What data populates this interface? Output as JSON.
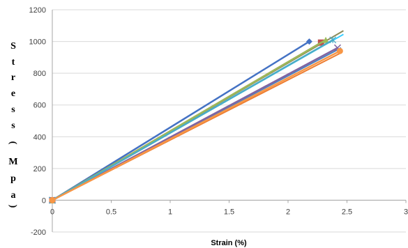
{
  "chart_data": {
    "type": "scatter",
    "title": "",
    "xlabel": "Strain (%)",
    "ylabel": "Stress (Mpa)",
    "ylabel_chars": [
      "S",
      "t",
      "r",
      "e",
      "s",
      "s",
      "(",
      "M",
      "p",
      "a",
      ")"
    ],
    "xlim": [
      0,
      3
    ],
    "ylim": [
      -200,
      1200
    ],
    "xticks": [
      "0",
      "0.5",
      "1",
      "1.5",
      "2",
      "2.5",
      "3"
    ],
    "yticks": [
      "-200",
      "0",
      "200",
      "400",
      "600",
      "800",
      "1000",
      "1200"
    ],
    "grid": "horizontal",
    "legend": "none",
    "series": [
      {
        "color": "#4472C4",
        "marker": "diamond",
        "points": [
          [
            0,
            0
          ],
          [
            2.18,
            1000
          ]
        ]
      },
      {
        "color": "#C0504D",
        "marker": "square",
        "points": [
          [
            0,
            0
          ],
          [
            2.28,
            993
          ]
        ]
      },
      {
        "color": "#9BBB59",
        "marker": "triangle",
        "points": [
          [
            0,
            0
          ],
          [
            2.32,
            1010
          ]
        ]
      },
      {
        "color": "#8064A2",
        "marker": "x",
        "points": [
          [
            0,
            0
          ],
          [
            2.42,
            960
          ]
        ]
      },
      {
        "color": "#4BACC6",
        "marker": "star",
        "points": [
          [
            0,
            0
          ],
          [
            2.38,
            1010
          ]
        ]
      },
      {
        "color": "#F79646",
        "marker": "circle",
        "points": [
          [
            0,
            0
          ],
          [
            2.44,
            940
          ]
        ]
      }
    ],
    "trendlines": [
      {
        "color": "#8B8B5A",
        "points": [
          [
            0,
            0
          ],
          [
            2.47,
            1068
          ]
        ]
      },
      {
        "color": "#4F81BD",
        "points": [
          [
            0,
            0
          ],
          [
            2.45,
            960
          ]
        ]
      },
      {
        "color": "#33CCFF",
        "points": [
          [
            0,
            0
          ],
          [
            2.47,
            1045
          ]
        ]
      },
      {
        "color": "#ED7D31",
        "points": [
          [
            0,
            0
          ],
          [
            2.44,
            925
          ]
        ]
      }
    ]
  }
}
